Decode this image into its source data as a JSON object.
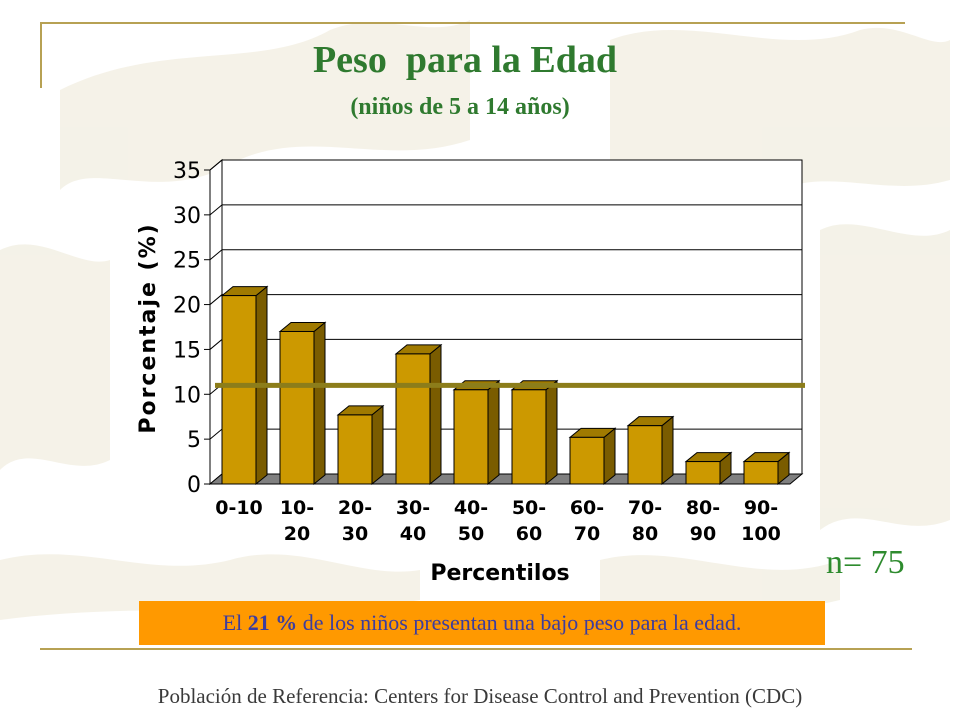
{
  "slide": {
    "title": "Peso  para la Edad",
    "subtitle": "(niños de 5 a 14 años)",
    "sample_size": "n= 75",
    "callout": {
      "prefix": "El ",
      "highlight": "21 %",
      "suffix": " de los niños presentan una bajo peso para la edad."
    },
    "footer": "Población de Referencia:  Centers for Disease Control and Prevention (CDC)"
  },
  "colors": {
    "title": "#2f7a2f",
    "bar_front": "#cc9900",
    "bar_side": "#7a5c00",
    "bar_top": "#a07a00",
    "reference_line": "#8c7d1a",
    "callout_bg": "#ff9900",
    "callout_text": "#3d3d9e"
  },
  "chart_data": {
    "type": "bar",
    "xlabel": "Percentilos",
    "ylabel": "Porcentaje (%)",
    "ylim": [
      0,
      35
    ],
    "yticks": [
      "0",
      "5",
      "10",
      "15",
      "20",
      "25",
      "30",
      "35"
    ],
    "grid": true,
    "style": "3d",
    "categories": [
      [
        "0-10"
      ],
      [
        "10-",
        "20"
      ],
      [
        "20-",
        "30"
      ],
      [
        "30-",
        "40"
      ],
      [
        "40-",
        "50"
      ],
      [
        "50-",
        "60"
      ],
      [
        "60-",
        "70"
      ],
      [
        "70-",
        "80"
      ],
      [
        "80-",
        "90"
      ],
      [
        "90-",
        "100"
      ]
    ],
    "values": [
      21,
      17,
      7.7,
      14.5,
      10.5,
      10.5,
      5.2,
      6.5,
      2.5,
      2.5
    ],
    "reference_line": 11
  }
}
